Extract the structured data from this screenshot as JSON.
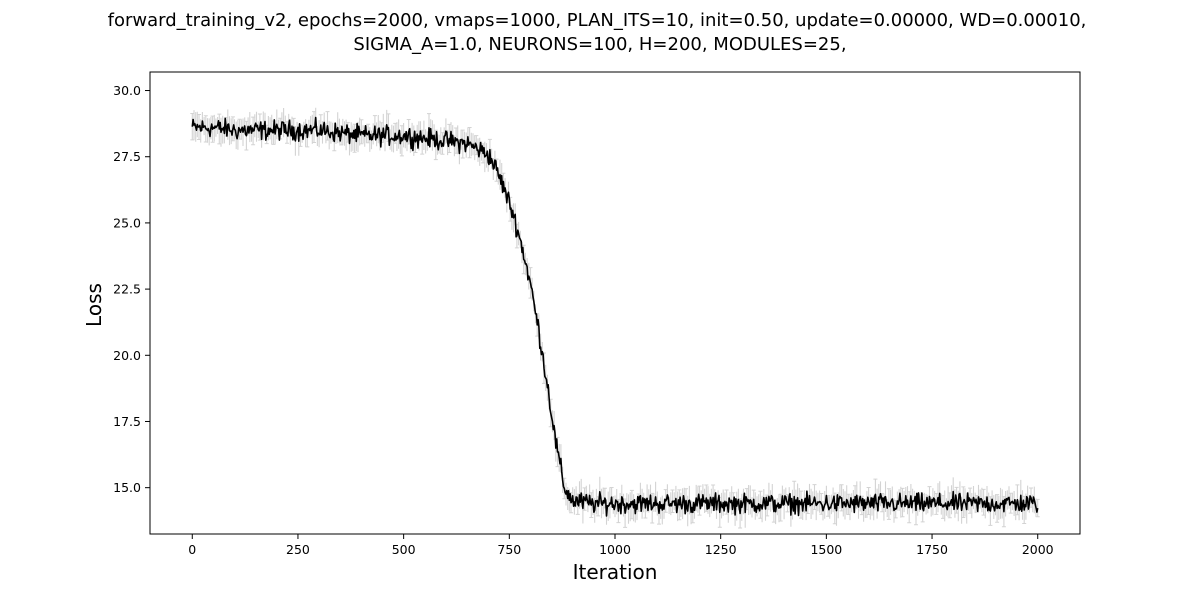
{
  "chart_data": {
    "type": "line",
    "title": "forward_training_v2, epochs=2000, vmaps=1000, PLAN_ITS=10, init=0.50, update=0.00000, WD=0.00010,",
    "subtitle": "SIGMA_A=1.0, NEURONS=100, H=200, MODULES=25,",
    "xlabel": "Iteration",
    "ylabel": "Loss",
    "xlim": [
      -100,
      2100
    ],
    "ylim": [
      13.25,
      30.7
    ],
    "x_ticks": [
      0,
      250,
      500,
      750,
      1000,
      1250,
      1500,
      1750,
      2000
    ],
    "x_tick_labels": [
      "0",
      "250",
      "500",
      "750",
      "1000",
      "1250",
      "1500",
      "1750",
      "2000"
    ],
    "y_ticks": [
      15.0,
      17.5,
      20.0,
      22.5,
      25.0,
      27.5,
      30.0
    ],
    "y_tick_labels": [
      "15.0",
      "17.5",
      "20.0",
      "22.5",
      "25.0",
      "27.5",
      "30.0"
    ],
    "grid": false,
    "legend": "none",
    "series": [
      {
        "color": "#000000",
        "error_bar_color": "#d3d3d3",
        "error_bar_halfwidth": 0.45,
        "x": [
          0,
          50,
          100,
          150,
          200,
          250,
          300,
          350,
          400,
          450,
          500,
          550,
          600,
          650,
          700,
          720,
          740,
          760,
          780,
          800,
          820,
          840,
          860,
          880,
          900,
          950,
          1000,
          1100,
          1200,
          1300,
          1400,
          1500,
          1600,
          1700,
          1800,
          1900,
          2000
        ],
        "y": [
          28.6,
          28.6,
          28.5,
          28.5,
          28.5,
          28.5,
          28.5,
          28.4,
          28.3,
          28.3,
          28.3,
          28.2,
          28.1,
          28.0,
          27.6,
          27.0,
          26.2,
          25.3,
          24.1,
          22.7,
          20.9,
          18.9,
          16.7,
          15.0,
          14.5,
          14.4,
          14.4,
          14.4,
          14.4,
          14.4,
          14.4,
          14.4,
          14.4,
          14.4,
          14.4,
          14.4,
          14.4
        ],
        "noise_amplitude": 0.3
      }
    ]
  }
}
